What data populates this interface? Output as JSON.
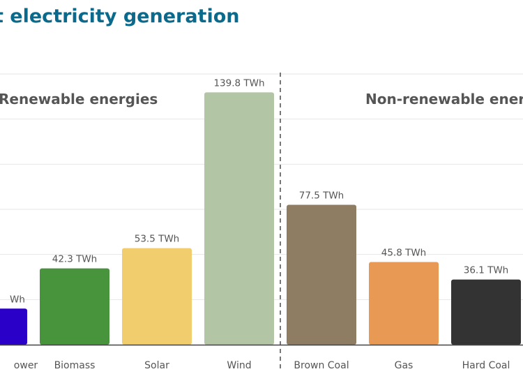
{
  "chart_data": {
    "type": "bar",
    "title": "t electricity generation",
    "group_labels": [
      "Renewable energies",
      "Non-renewable ener"
    ],
    "categories": [
      "ower",
      "Biomass",
      "Solar",
      "Wind",
      "Brown Coal",
      "Gas",
      "Hard Coal"
    ],
    "values": [
      20,
      42.3,
      53.5,
      139.8,
      77.5,
      45.8,
      36.1
    ],
    "value_labels": [
      "Wh",
      "42.3 TWh",
      "53.5 TWh",
      "139.8 TWh",
      "77.5 TWh",
      "45.8 TWh",
      "36.1 TWh"
    ],
    "unit": "TWh",
    "colors": [
      "#2a00c8",
      "#47943d",
      "#f2cd6e",
      "#b2c5a5",
      "#8f7d63",
      "#e89a55",
      "#333333"
    ],
    "ylim": [
      0,
      150
    ],
    "grid_step": 25,
    "grid": true,
    "divider_after_index": 3
  }
}
